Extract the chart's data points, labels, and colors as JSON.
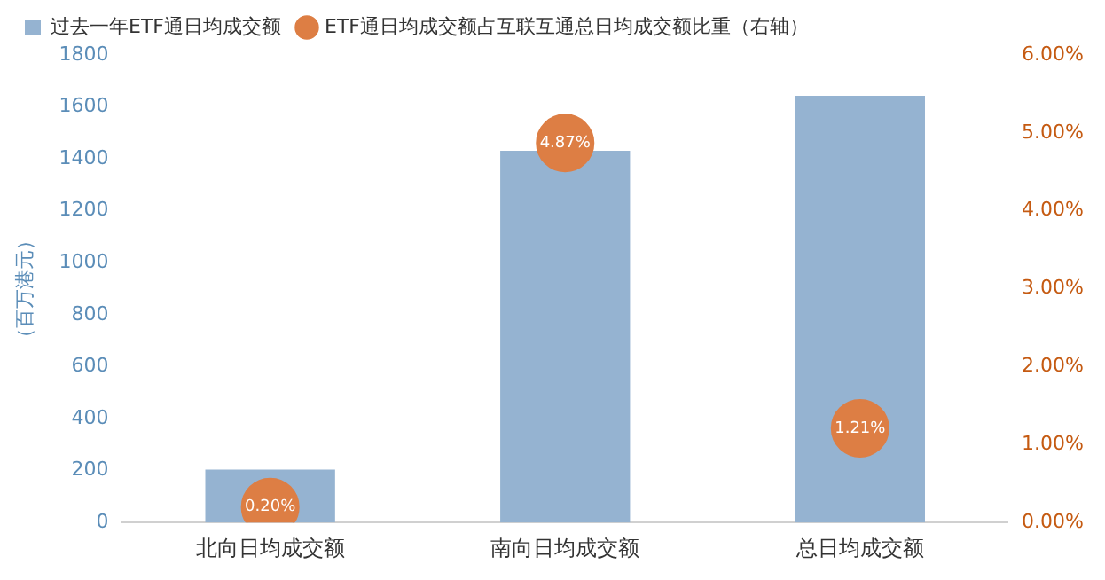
{
  "chart_data": {
    "type": "bar",
    "categories": [
      "北向日均成交额",
      "南向日均成交额",
      "总日均成交额"
    ],
    "ylabel": "（百万港元）",
    "ylim": [
      0,
      1800
    ],
    "yticks": [
      0,
      200,
      400,
      600,
      800,
      1000,
      1200,
      1400,
      1600,
      1800
    ],
    "y2lim": [
      0,
      6
    ],
    "y2ticks": [
      {
        "value": 0,
        "label": "0.00%"
      },
      {
        "value": 1,
        "label": "1.00%"
      },
      {
        "value": 2,
        "label": "2.00%"
      },
      {
        "value": 3,
        "label": "3.00%"
      },
      {
        "value": 4,
        "label": "4.00%"
      },
      {
        "value": 5,
        "label": "5.00%"
      },
      {
        "value": 6,
        "label": "6.00%"
      }
    ],
    "grid": false,
    "legend": "top left",
    "series": [
      {
        "name": "过去一年ETF通日均成交额",
        "color": "#95b3d1",
        "values": [
          204,
          1431,
          1643
        ]
      },
      {
        "name": "ETF通日均成交额占互联互通总日均成交额比重（右轴）",
        "type": "scatter",
        "axis": "y2",
        "color": "#dd7e44",
        "marker": "circle",
        "x": [
          "北向日均成交额",
          "南向日均成交额",
          "总日均成交额"
        ],
        "values": [
          0.2,
          4.87,
          1.21
        ],
        "value_labels": [
          "0.20%",
          "4.87%",
          "1.21%"
        ]
      }
    ]
  }
}
